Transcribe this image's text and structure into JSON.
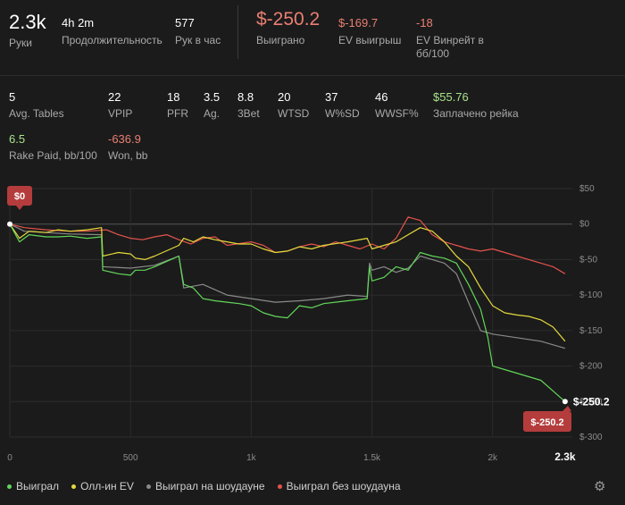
{
  "stats_top": [
    {
      "value": "2.3k",
      "label": "Руки"
    },
    {
      "value": "4h 2m",
      "label": "Продолжительность"
    },
    {
      "value": "577",
      "label": "Рук в час"
    },
    {
      "value": "$-250.2",
      "label": "Выиграно"
    },
    {
      "value": "$-169.7",
      "label": "EV выигрыш"
    },
    {
      "value": "-18",
      "label": "EV Винрейт в бб/100"
    }
  ],
  "stats_row2": [
    {
      "value": "5",
      "label": "Avg. Tables"
    },
    {
      "value": "22",
      "label": "VPIP"
    },
    {
      "value": "18",
      "label": "PFR"
    },
    {
      "value": "3.5",
      "label": "Ag."
    },
    {
      "value": "8.8",
      "label": "3Bet"
    },
    {
      "value": "20",
      "label": "WTSD"
    },
    {
      "value": "37",
      "label": "W%SD"
    },
    {
      "value": "46",
      "label": "WWSF%"
    },
    {
      "value": "$55.76",
      "label": "Заплачено рейка"
    }
  ],
  "stats_row3": [
    {
      "value": "6.5",
      "label": "Rake Paid, bb/100"
    },
    {
      "value": "-636.9",
      "label": "Won, bb"
    }
  ],
  "colors": {
    "won": "#62d65a",
    "ev": "#e4da3c",
    "showdown": "#8a8a8a",
    "nonshowdown": "#e5534b",
    "badge": "#b53c3c"
  },
  "chart_data": {
    "type": "line",
    "x_ticks": [
      "0",
      "500",
      "1k",
      "1.5k",
      "2k",
      "2.3k"
    ],
    "x_tick_values": [
      0,
      500,
      1000,
      1500,
      2000,
      2300
    ],
    "y_ticks": [
      "$50",
      "$0",
      "$-50",
      "$-100",
      "$-150",
      "$-200",
      "$-250",
      "$-300"
    ],
    "y_tick_values": [
      50,
      0,
      -50,
      -100,
      -150,
      -200,
      -250,
      -300
    ],
    "xlim": [
      0,
      2330
    ],
    "ylim": [
      -300,
      50
    ],
    "start_badge": "$0",
    "end_badge": "$-250.2",
    "end_label": "$-250.2",
    "legend_position": "bottom",
    "series": [
      {
        "name": "Выиграл",
        "color_key": "won",
        "x": [
          0,
          40,
          80,
          150,
          200,
          250,
          320,
          380,
          385,
          450,
          500,
          520,
          560,
          600,
          700,
          720,
          760,
          800,
          850,
          900,
          950,
          1000,
          1050,
          1100,
          1150,
          1200,
          1250,
          1300,
          1400,
          1480,
          1490,
          1500,
          1550,
          1600,
          1650,
          1700,
          1750,
          1800,
          1850,
          1900,
          1950,
          1980,
          2000,
          2050,
          2100,
          2150,
          2200,
          2250,
          2300
        ],
        "y": [
          0,
          -25,
          -15,
          -18,
          -18,
          -17,
          -20,
          -18,
          -65,
          -70,
          -72,
          -65,
          -65,
          -60,
          -45,
          -85,
          -90,
          -105,
          -108,
          -110,
          -112,
          -115,
          -125,
          -130,
          -132,
          -115,
          -118,
          -112,
          -108,
          -105,
          -60,
          -80,
          -75,
          -60,
          -65,
          -40,
          -45,
          -48,
          -55,
          -85,
          -120,
          -160,
          -200,
          -205,
          -210,
          -215,
          -220,
          -235,
          -250
        ]
      },
      {
        "name": "Олл-ин EV",
        "color_key": "ev",
        "x": [
          0,
          40,
          80,
          150,
          200,
          250,
          320,
          380,
          385,
          450,
          500,
          520,
          560,
          600,
          700,
          720,
          760,
          800,
          850,
          900,
          950,
          1000,
          1050,
          1100,
          1150,
          1200,
          1250,
          1300,
          1400,
          1480,
          1500,
          1550,
          1600,
          1650,
          1700,
          1750,
          1800,
          1850,
          1900,
          1950,
          2000,
          2050,
          2100,
          2150,
          2200,
          2250,
          2300
        ],
        "y": [
          0,
          -20,
          -10,
          -12,
          -8,
          -10,
          -8,
          -5,
          -45,
          -40,
          -42,
          -48,
          -50,
          -45,
          -30,
          -20,
          -25,
          -18,
          -22,
          -25,
          -28,
          -28,
          -35,
          -40,
          -38,
          -32,
          -35,
          -30,
          -25,
          -20,
          -35,
          -30,
          -25,
          -15,
          -5,
          -10,
          -25,
          -45,
          -60,
          -90,
          -115,
          -125,
          -128,
          -130,
          -135,
          -145,
          -165
        ]
      },
      {
        "name": "Выиграл на шоудауне",
        "color_key": "showdown",
        "x": [
          0,
          60,
          150,
          250,
          380,
          385,
          500,
          600,
          700,
          720,
          800,
          900,
          1000,
          1100,
          1200,
          1300,
          1400,
          1480,
          1490,
          1500,
          1550,
          1600,
          1650,
          1700,
          1750,
          1800,
          1850,
          1900,
          1950,
          2000,
          2100,
          2200,
          2300
        ],
        "y": [
          0,
          -10,
          -12,
          -14,
          -15,
          -60,
          -62,
          -58,
          -45,
          -90,
          -85,
          -100,
          -105,
          -110,
          -108,
          -105,
          -100,
          -102,
          -55,
          -65,
          -60,
          -68,
          -62,
          -45,
          -50,
          -55,
          -70,
          -110,
          -150,
          -155,
          -160,
          -165,
          -175
        ]
      },
      {
        "name": "Выиграл без шоудауна",
        "color_key": "nonshowdown",
        "x": [
          0,
          60,
          150,
          250,
          320,
          400,
          450,
          500,
          550,
          600,
          650,
          700,
          750,
          800,
          850,
          900,
          1000,
          1050,
          1100,
          1150,
          1200,
          1250,
          1300,
          1350,
          1400,
          1450,
          1500,
          1550,
          1600,
          1650,
          1700,
          1750,
          1800,
          1850,
          1900,
          1950,
          2000,
          2050,
          2100,
          2150,
          2200,
          2250,
          2300
        ],
        "y": [
          0,
          -5,
          -8,
          -10,
          -10,
          -8,
          -15,
          -20,
          -22,
          -18,
          -15,
          -22,
          -28,
          -20,
          -18,
          -30,
          -25,
          -30,
          -40,
          -38,
          -32,
          -28,
          -32,
          -25,
          -30,
          -35,
          -28,
          -35,
          -20,
          10,
          5,
          -15,
          -25,
          -30,
          -35,
          -38,
          -35,
          -40,
          -45,
          -50,
          -55,
          -60,
          -70
        ]
      }
    ]
  }
}
